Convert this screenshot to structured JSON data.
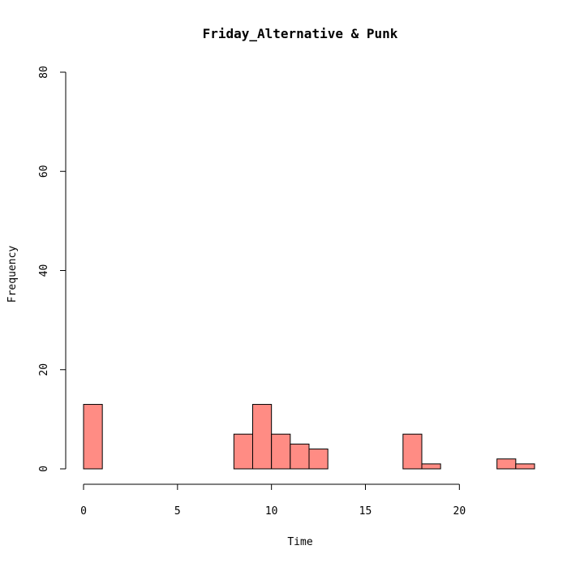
{
  "chart_data": {
    "type": "bar",
    "title": "Friday_Alternative & Punk",
    "xlabel": "Time",
    "ylabel": "Frequency",
    "bin_width": 1,
    "bin_starts": [
      0,
      1,
      2,
      3,
      4,
      5,
      6,
      7,
      8,
      9,
      10,
      11,
      12,
      13,
      14,
      15,
      16,
      17,
      18,
      19,
      20,
      21,
      22,
      23
    ],
    "values": [
      13,
      0,
      0,
      0,
      0,
      0,
      0,
      0,
      7,
      13,
      7,
      5,
      4,
      0,
      0,
      0,
      0,
      7,
      1,
      0,
      0,
      0,
      2,
      1
    ],
    "xlim": [
      0,
      24
    ],
    "ylim": [
      0,
      80
    ],
    "x_ticks": [
      0,
      5,
      10,
      15,
      20
    ],
    "y_ticks": [
      0,
      20,
      40,
      60,
      80
    ],
    "bar_color": "#FF8C84",
    "grid": false
  }
}
